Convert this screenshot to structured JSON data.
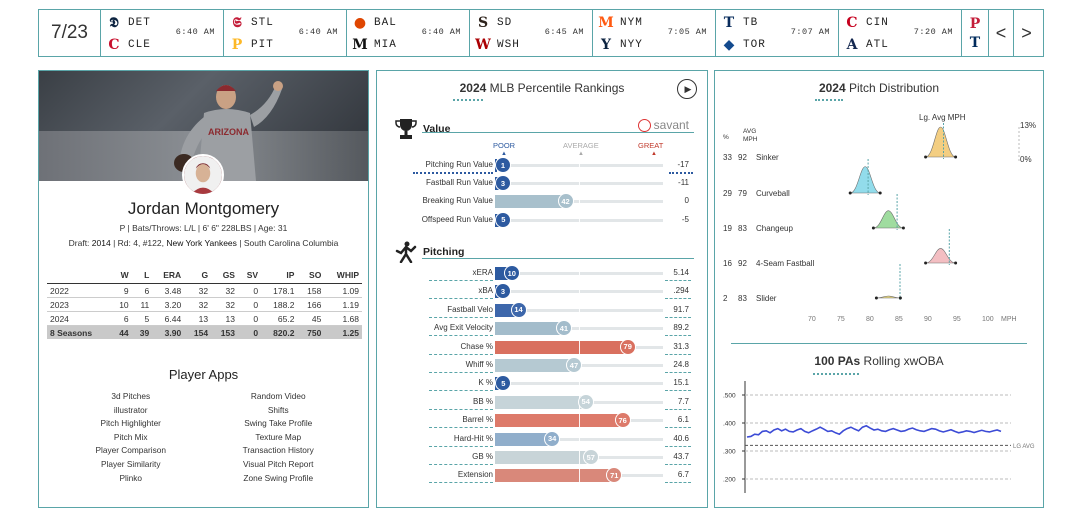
{
  "scoreboard": {
    "date": "7/23",
    "games": [
      {
        "away": "DET",
        "home": "CLE",
        "time": "6:40 AM",
        "away_color": "#0c2340",
        "home_color": "#c8102e",
        "away_glyph": "𝕯",
        "home_glyph": "C"
      },
      {
        "away": "STL",
        "home": "PIT",
        "time": "6:40 AM",
        "away_color": "#c41e3a",
        "home_color": "#fdb827",
        "away_glyph": "𝕾",
        "home_glyph": "P"
      },
      {
        "away": "BAL",
        "home": "MIA",
        "time": "6:40 AM",
        "away_color": "#df4601",
        "home_color": "#111111",
        "away_glyph": "●",
        "home_glyph": "M"
      },
      {
        "away": "SD",
        "home": "WSH",
        "time": "6:45 AM",
        "away_color": "#2f241d",
        "home_color": "#ab0003",
        "away_glyph": "S",
        "home_glyph": "W"
      },
      {
        "away": "NYM",
        "home": "NYY",
        "time": "7:05 AM",
        "away_color": "#ff5910",
        "home_color": "#0c2340",
        "away_glyph": "M",
        "home_glyph": "Y"
      },
      {
        "away": "TB",
        "home": "TOR",
        "time": "7:07 AM",
        "away_color": "#092c5c",
        "home_color": "#134a8e",
        "away_glyph": "T",
        "home_glyph": "◆"
      },
      {
        "away": "CIN",
        "home": "ATL",
        "time": "7:20 AM",
        "away_color": "#c6011f",
        "home_color": "#13274f",
        "away_glyph": "C",
        "home_glyph": "A"
      }
    ],
    "last_game": {
      "away_color": "#c41e3a",
      "home_color": "#002b5c",
      "away_glyph": "P",
      "home_glyph": "T"
    },
    "prev_label": "<",
    "next_label": ">"
  },
  "player": {
    "name": "Jordan Montgomery",
    "info": "P | Bats/Throws: L/L | 6' 6\" 228LBS | Age: 31",
    "draft_prefix": "Draft: ",
    "draft_year": "2014",
    "draft_mid": " | Rd: 4, #122, ",
    "draft_team": "New York Yankees",
    "draft_suffix": " | South Carolina Columbia",
    "jersey_text": "ARIZONA",
    "stats_headers": [
      "",
      "W",
      "L",
      "ERA",
      "G",
      "GS",
      "SV",
      "IP",
      "SO",
      "WHIP"
    ],
    "stats_rows": [
      [
        "2022",
        "9",
        "6",
        "3.48",
        "32",
        "32",
        "0",
        "178.1",
        "158",
        "1.09"
      ],
      [
        "2023",
        "10",
        "11",
        "3.20",
        "32",
        "32",
        "0",
        "188.2",
        "166",
        "1.19"
      ],
      [
        "2024",
        "6",
        "5",
        "6.44",
        "13",
        "13",
        "0",
        "65.2",
        "45",
        "1.68"
      ]
    ],
    "stats_total": [
      "8 Seasons",
      "44",
      "39",
      "3.90",
      "154",
      "153",
      "0",
      "820.2",
      "750",
      "1.25"
    ]
  },
  "apps": {
    "title": "Player Apps",
    "items": [
      "3d Pitches",
      "Random Video",
      "illustrator",
      "Shifts",
      "Pitch Highlighter",
      "Swing Take Profile",
      "Pitch Mix",
      "Texture Map",
      "Player Comparison",
      "Transaction History",
      "Player Similarity",
      "Visual Pitch Report",
      "Plinko",
      "Zone Swing Profile"
    ]
  },
  "percentile": {
    "title_bold": "2024",
    "title_rest": " MLB Percentile Rankings",
    "value_section": "Value",
    "pitching_section": "Pitching",
    "savant_label": "savant",
    "scale": {
      "poor": "POOR",
      "average": "AVERAGE",
      "great": "GREAT"
    },
    "value_rows": [
      {
        "label": "Pitching Run Value",
        "pct": 1,
        "value": "-17",
        "color": "#2d5aa0"
      },
      {
        "label": "Fastball Run Value",
        "pct": 3,
        "value": "-11",
        "color": "#2d5aa0"
      },
      {
        "label": "Breaking Run Value",
        "pct": 42,
        "value": "0",
        "color": "#a8c0cc"
      },
      {
        "label": "Offspeed Run Value",
        "pct": 5,
        "value": "-5",
        "color": "#2d5aa0"
      }
    ],
    "pitching_rows": [
      {
        "label": "xERA",
        "pct": 10,
        "value": "5.14",
        "color": "#2d5aa0"
      },
      {
        "label": "xBA",
        "pct": 3,
        "value": ".294",
        "color": "#2d5aa0"
      },
      {
        "label": "Fastball Velo",
        "pct": 14,
        "value": "91.7",
        "color": "#3d67ab"
      },
      {
        "label": "Avg Exit Velocity",
        "pct": 41,
        "value": "89.2",
        "color": "#a3bccb"
      },
      {
        "label": "Chase %",
        "pct": 79,
        "value": "31.3",
        "color": "#d9705f"
      },
      {
        "label": "Whiff %",
        "pct": 47,
        "value": "24.8",
        "color": "#b5c9d2"
      },
      {
        "label": "K %",
        "pct": 5,
        "value": "15.1",
        "color": "#2d5aa0"
      },
      {
        "label": "BB %",
        "pct": 54,
        "value": "7.7",
        "color": "#c6d4d9"
      },
      {
        "label": "Barrel %",
        "pct": 76,
        "value": "6.1",
        "color": "#dd7a6a"
      },
      {
        "label": "Hard-Hit %",
        "pct": 34,
        "value": "40.6",
        "color": "#90aecb"
      },
      {
        "label": "GB %",
        "pct": 57,
        "value": "43.7",
        "color": "#c8d4d8"
      },
      {
        "label": "Extension",
        "pct": 71,
        "value": "6.7",
        "color": "#d9887a"
      }
    ]
  },
  "pitch_dist": {
    "title_bold": "2024",
    "title_rest": " Pitch Distribution",
    "lg_avg_label": "Lg. Avg MPH",
    "col_pct": "%",
    "col_avg": "AVG",
    "col_mph": "MPH",
    "pct_max": "13%",
    "pct_min": "0%",
    "x_ticks": [
      70,
      75,
      80,
      85,
      90,
      95,
      100
    ],
    "x_unit": "MPH",
    "pitches": [
      {
        "pct": "33",
        "avg": "92",
        "name": "Sinker",
        "mph": 92,
        "lg": 92.5,
        "color": "#f2c66d"
      },
      {
        "pct": "29",
        "avg": "79",
        "name": "Curveball",
        "mph": 79,
        "lg": 79.5,
        "color": "#7fd7e8"
      },
      {
        "pct": "19",
        "avg": "83",
        "name": "Changeup",
        "mph": 83,
        "lg": 84.5,
        "color": "#8fd68f"
      },
      {
        "pct": "16",
        "avg": "92",
        "name": "4-Seam Fastball",
        "mph": 92,
        "lg": 93.5,
        "color": "#f2b3b8"
      },
      {
        "pct": "2",
        "avg": "83",
        "name": "Slider",
        "mph": 83,
        "lg": 85,
        "color": "#e7d36b"
      }
    ]
  },
  "rolling": {
    "title_bold": "100 PAs",
    "title_rest": " Rolling xwOBA",
    "y_ticks": [
      ".500",
      ".400",
      ".300",
      ".200"
    ],
    "lg_avg_label": "LG AVG",
    "lg_avg": 0.32,
    "series": [
      0.35,
      0.352,
      0.36,
      0.358,
      0.37,
      0.372,
      0.365,
      0.375,
      0.38,
      0.372,
      0.378,
      0.37,
      0.368,
      0.375,
      0.38,
      0.37,
      0.365,
      0.372,
      0.378,
      0.385,
      0.378,
      0.37,
      0.372,
      0.365,
      0.36,
      0.372,
      0.38,
      0.385,
      0.378,
      0.372,
      0.385,
      0.39,
      0.382,
      0.375,
      0.378,
      0.372,
      0.37,
      0.376,
      0.38,
      0.375,
      0.37,
      0.372,
      0.378,
      0.382,
      0.376,
      0.372,
      0.37,
      0.375,
      0.38,
      0.378,
      0.372,
      0.368,
      0.372,
      0.376,
      0.37,
      0.365,
      0.368,
      0.372,
      0.37,
      0.366,
      0.37,
      0.374,
      0.37,
      0.368,
      0.372,
      0.375,
      0.37
    ]
  }
}
